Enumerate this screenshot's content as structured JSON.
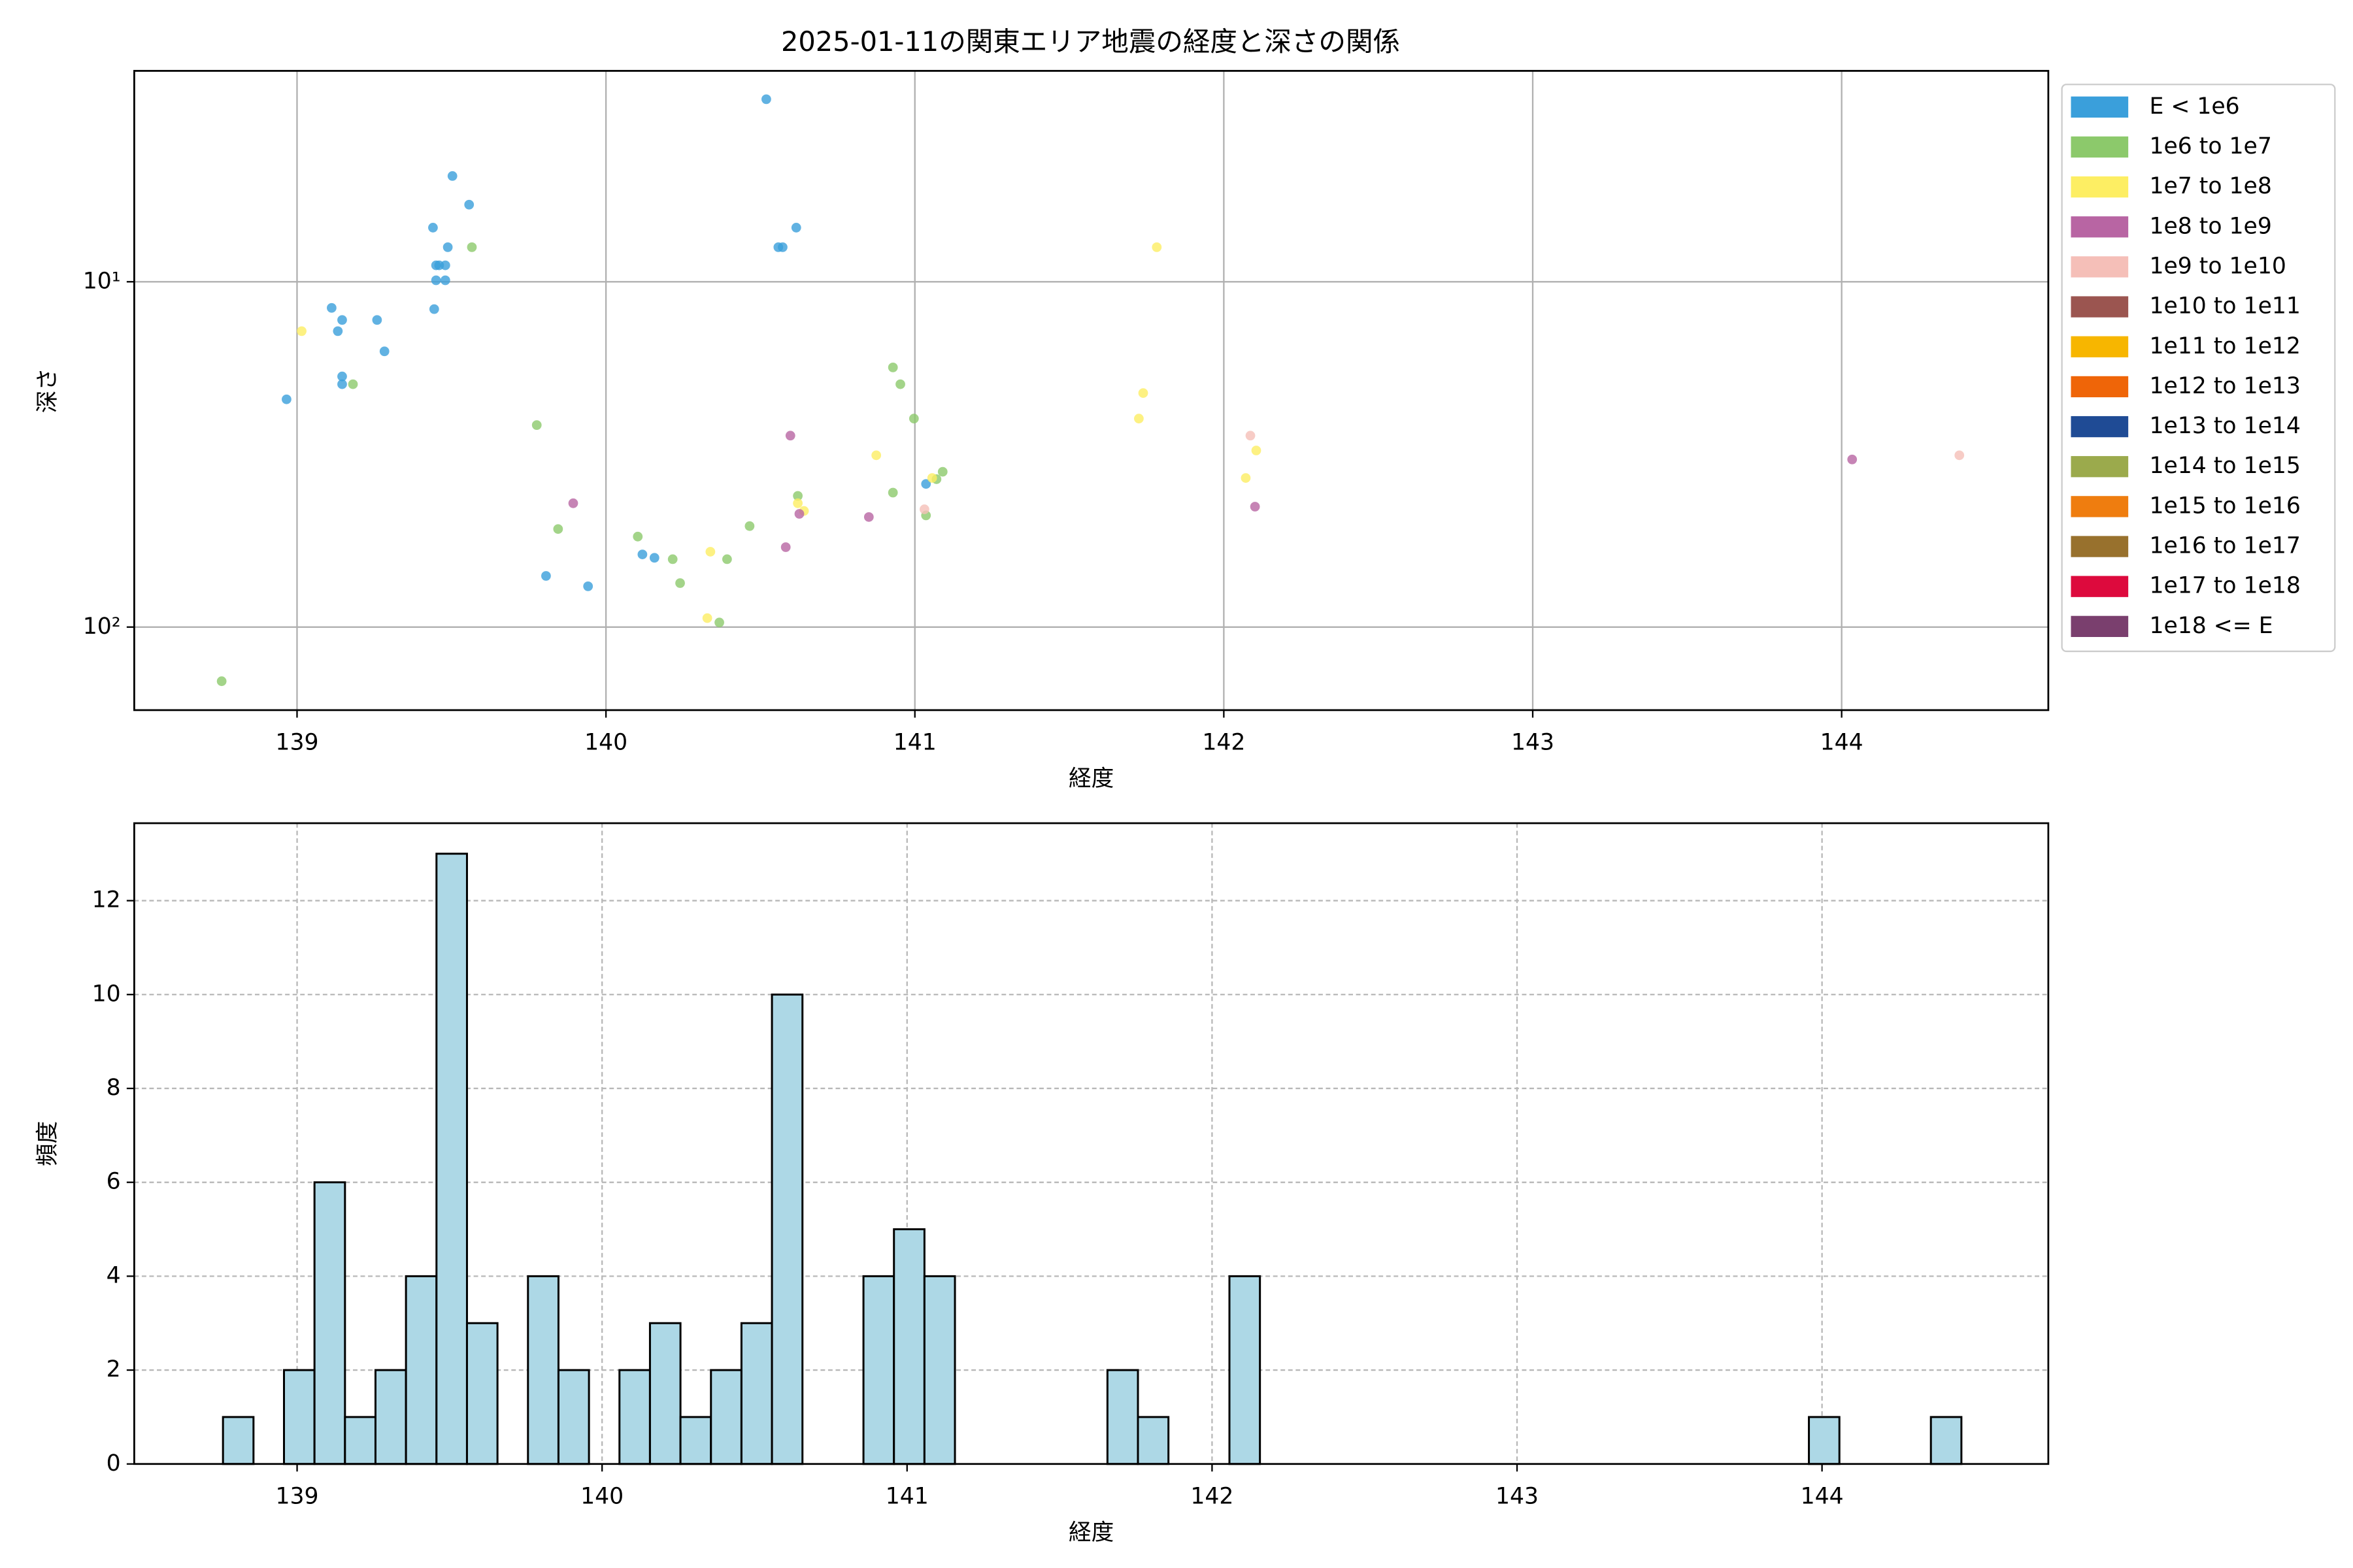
{
  "chart_data": [
    {
      "type": "scatter",
      "title": "2025-01-11の関東エリア地震の経度と深さの関係",
      "xlabel": "経度",
      "ylabel": "深さ",
      "xlim": [
        138.473,
        144.669
      ],
      "ylim": [
        174,
        2.45
      ],
      "yscale": "log",
      "xticks": [
        139,
        140,
        141,
        142,
        143,
        144
      ],
      "yticks": [
        {
          "value": 10,
          "label": "10¹"
        },
        {
          "value": 100,
          "label": "10²"
        }
      ],
      "grid": true,
      "legend": "outside right",
      "series": [
        {
          "name": "E < 1e6",
          "color": "#3a9fdb",
          "x": [
            140.519,
            139.503,
            139.557,
            139.44,
            140.558,
            140.572,
            140.616,
            139.488,
            139.45,
            139.46,
            139.48,
            139.45,
            139.48,
            139.112,
            139.259,
            139.146,
            139.132,
            139.444,
            139.283,
            139.146,
            139.146,
            138.966,
            141.036,
            139.806,
            140.118,
            140.157,
            139.942
          ],
          "values": [
            2.96,
            4.94,
            5.98,
            6.97,
            7.94,
            7.94,
            6.97,
            7.94,
            8.96,
            8.96,
            8.96,
            9.9,
            9.9,
            11.9,
            12.9,
            12.9,
            13.9,
            12.0,
            15.9,
            18.8,
            19.8,
            21.9,
            38.5,
            71.1,
            61.6,
            63.0,
            76.2
          ]
        },
        {
          "name": "1e6 to 1e7",
          "color": "#8cc96b",
          "x": [
            139.566,
            139.181,
            140.929,
            140.953,
            140.997,
            139.776,
            140.621,
            140.929,
            141.09,
            141.07,
            141.036,
            139.845,
            140.465,
            140.103,
            140.216,
            140.392,
            140.24,
            140.367,
            138.756
          ],
          "values": [
            7.94,
            19.8,
            17.7,
            19.8,
            24.9,
            26.0,
            41.7,
            40.8,
            35.5,
            37.3,
            47.5,
            52.0,
            51.0,
            54.7,
            63.6,
            63.6,
            74.6,
            97.0,
            143.5
          ]
        },
        {
          "name": "1e7 to 1e8",
          "color": "#fdee63",
          "x": [
            141.783,
            139.015,
            141.739,
            141.725,
            140.875,
            142.105,
            142.071,
            141.056,
            140.621,
            140.641,
            140.338,
            140.328
          ],
          "values": [
            7.94,
            13.9,
            21.0,
            24.9,
            31.8,
            30.8,
            37.0,
            37.0,
            43.8,
            46.1,
            60.5,
            94.2
          ]
        },
        {
          "name": "1e8 to 1e9",
          "color": "#b865a3",
          "x": [
            140.597,
            144.034,
            139.894,
            140.626,
            142.101,
            140.851,
            140.582
          ],
          "values": [
            27.9,
            32.7,
            43.8,
            47.0,
            44.8,
            48.0,
            58.7
          ]
        },
        {
          "name": "1e9 to 1e10",
          "color": "#f5bfb8",
          "x": [
            142.086,
            144.381,
            141.031
          ],
          "values": [
            27.9,
            31.8,
            45.6
          ]
        },
        {
          "name": "1e10 to 1e11",
          "color": "#9b5550",
          "x": [],
          "values": []
        },
        {
          "name": "1e11 to 1e12",
          "color": "#f7b600",
          "x": [],
          "values": []
        },
        {
          "name": "1e12 to 1e13",
          "color": "#ef6508",
          "x": [],
          "values": []
        },
        {
          "name": "1e13 to 1e14",
          "color": "#1f4b95",
          "x": [],
          "values": []
        },
        {
          "name": "1e14 to 1e15",
          "color": "#9baa4c",
          "x": [],
          "values": []
        },
        {
          "name": "1e15 to 1e16",
          "color": "#ef7d0f",
          "x": [],
          "values": []
        },
        {
          "name": "1e16 to 1e17",
          "color": "#98712d",
          "x": [],
          "values": []
        },
        {
          "name": "1e17 to 1e18",
          "color": "#dd0a3d",
          "x": [],
          "values": []
        },
        {
          "name": "1e18 <= E",
          "color": "#7a3f6e",
          "x": [],
          "values": []
        }
      ]
    },
    {
      "type": "histogram",
      "xlabel": "経度",
      "ylabel": "頻度",
      "xlim": [
        138.466,
        144.742
      ],
      "ylim": [
        0,
        13.65
      ],
      "xticks": [
        139,
        140,
        141,
        142,
        143,
        144
      ],
      "yticks": [
        0,
        2,
        4,
        6,
        8,
        10,
        12
      ],
      "grid": true,
      "grid_style": "dashed",
      "color": "#add8e6",
      "edgecolor": "#000000",
      "bins": [
        138.757,
        138.857,
        138.957,
        139.057,
        139.157,
        139.257,
        139.357,
        139.457,
        139.557,
        139.657,
        139.757,
        139.857,
        139.957,
        140.057,
        140.157,
        140.257,
        140.357,
        140.457,
        140.557,
        140.657,
        140.757,
        140.857,
        140.957,
        141.057,
        141.157,
        141.257,
        141.357,
        141.457,
        141.557,
        141.657,
        141.757,
        141.857,
        141.957,
        142.057,
        142.157,
        142.257,
        142.357,
        142.457,
        142.557,
        142.657,
        142.757,
        142.857,
        142.957,
        143.057,
        143.157,
        143.257,
        143.357,
        143.457,
        143.557,
        143.657,
        143.757,
        143.857,
        143.957,
        144.057,
        144.157,
        144.257,
        144.357,
        144.457
      ],
      "values": [
        1,
        0,
        2,
        6,
        1,
        2,
        4,
        13,
        3,
        0,
        4,
        2,
        0,
        2,
        3,
        1,
        2,
        3,
        10,
        0,
        0,
        4,
        5,
        4,
        0,
        0,
        0,
        0,
        0,
        2,
        1,
        0,
        0,
        4,
        0,
        0,
        0,
        0,
        0,
        0,
        0,
        0,
        0,
        0,
        0,
        0,
        0,
        0,
        0,
        0,
        0,
        0,
        1,
        0,
        0,
        0,
        1
      ]
    }
  ]
}
